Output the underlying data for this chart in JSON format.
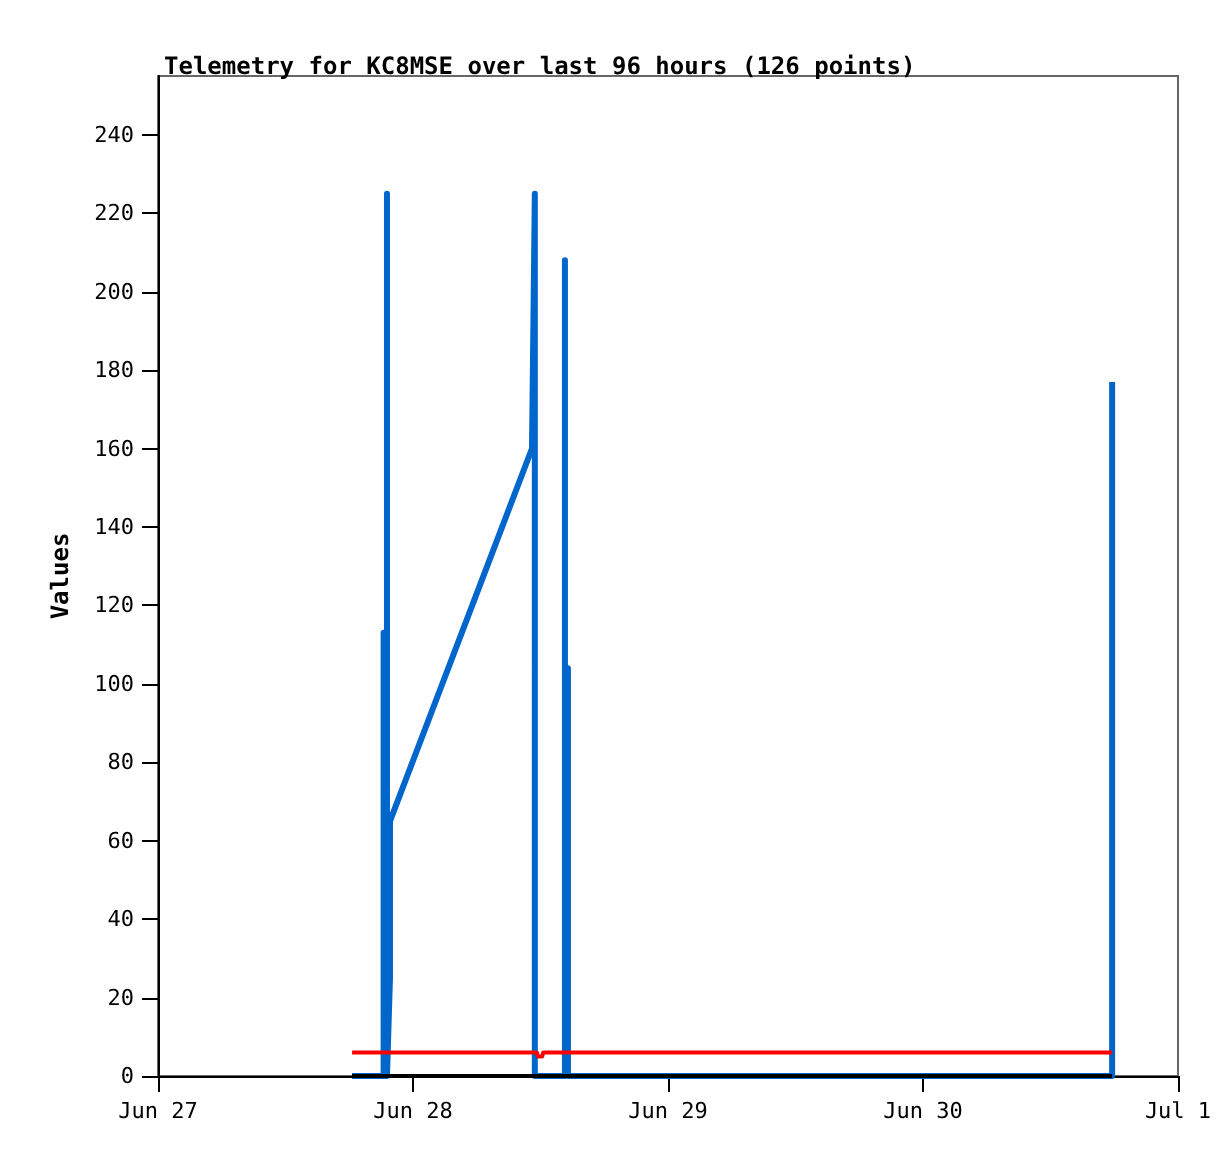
{
  "chart_data": {
    "type": "line",
    "title": "Telemetry for KC8MSE over last 96 hours (126 points)",
    "ylabel": "Values",
    "xlim": [
      "--06-27",
      "--07-01"
    ],
    "xticks": [
      {
        "value": "--06-27",
        "label": "Jun 27"
      },
      {
        "value": "--06-28",
        "label": "Jun 28"
      },
      {
        "value": "--06-29",
        "label": "Jun 29"
      },
      {
        "value": "--06-30",
        "label": "Jun 30"
      },
      {
        "value": "--07-01",
        "label": "Jul 1"
      }
    ],
    "ylim": [
      0,
      255
    ],
    "yticks": [
      0,
      20,
      40,
      60,
      80,
      100,
      120,
      140,
      160,
      180,
      200,
      220,
      240
    ],
    "grid": false,
    "marker": "none",
    "line_style": "solid",
    "series": [
      {
        "color": "#0066cc",
        "x": [
          "--06-27T18:16",
          "--06-27T21:14",
          "--06-27T21:14",
          "--06-27T21:14",
          "--06-27T21:33",
          "--06-27T21:33",
          "--06-27T21:33",
          "--06-27T21:50",
          "--06-27T21:50",
          "--06-28T11:12",
          "--06-28T11:28",
          "--06-28T11:28",
          "--06-28T14:18",
          "--06-28T14:18",
          "--06-28T14:18",
          "--06-28T14:35",
          "--06-28T14:35",
          "--06-30T17:48",
          "--06-30T17:48"
        ],
        "values": [
          0,
          0,
          113,
          0,
          0,
          225,
          0,
          25,
          65,
          160,
          225,
          0,
          0,
          208,
          0,
          104,
          0,
          0,
          177
        ]
      },
      {
        "color": "#ff0000",
        "x": [
          "--06-27T18:16",
          "--06-28T11:40",
          "--06-28T11:45",
          "--06-28T12:10",
          "--06-28T12:15",
          "--06-30T17:48"
        ],
        "values": [
          6,
          6,
          5,
          5,
          6,
          6
        ]
      },
      {
        "color": "#000000",
        "x": [
          "--06-27T18:16",
          "--06-30T17:48"
        ],
        "values": [
          0,
          0
        ]
      }
    ]
  }
}
